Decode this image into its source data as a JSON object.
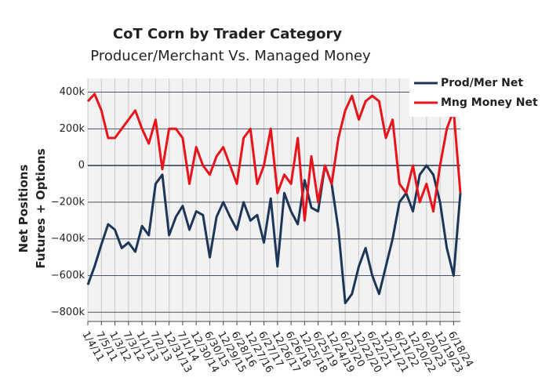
{
  "chart_data": {
    "type": "line",
    "title": "CoT Corn by Trader Category",
    "subtitle": "Producer/Merchant Vs. Managed Money",
    "ylabel": [
      "Net Positions",
      "Futures + Options"
    ],
    "x": [
      "1/4/11",
      null,
      "7/5/11",
      null,
      "1/3/12",
      null,
      "7/3/12",
      null,
      "1/1/13",
      null,
      "7/2/13",
      null,
      "12/31/13",
      null,
      "7/1/14",
      null,
      "12/30/14",
      null,
      "6/30/15",
      null,
      "12/29/15",
      null,
      "6/28/16",
      null,
      "12/27/16",
      null,
      "6/27/17",
      null,
      "12/26/17",
      null,
      "6/26/18",
      null,
      "12/25/18",
      null,
      "6/25/19",
      null,
      "12/24/19",
      null,
      "6/23/20",
      null,
      "12/22/20",
      null,
      "6/22/21",
      null,
      "12/21/21",
      null,
      "6/21/22",
      null,
      "12/20/22",
      null,
      "6/20/23",
      null,
      "12/19/23",
      null,
      "6/18/24",
      null
    ],
    "series": [
      {
        "name": "Prod/Mer Net",
        "color": "#1d3557",
        "values": [
          -650000,
          -550000,
          -430000,
          -320000,
          -350000,
          -450000,
          -420000,
          -470000,
          -330000,
          -380000,
          -100000,
          -50000,
          -380000,
          -280000,
          -220000,
          -350000,
          -250000,
          -270000,
          -500000,
          -280000,
          -200000,
          -280000,
          -350000,
          -200000,
          -300000,
          -270000,
          -420000,
          -180000,
          -550000,
          -150000,
          -250000,
          -320000,
          -80000,
          -230000,
          -250000,
          0,
          -100000,
          -350000,
          -750000,
          -700000,
          -550000,
          -450000,
          -600000,
          -700000,
          -550000,
          -400000,
          -200000,
          -150000,
          -250000,
          -50000,
          0,
          -50000,
          -200000,
          -450000,
          -600000,
          -150000
        ]
      },
      {
        "name": "Mng Money Net",
        "color": "#e8131b",
        "values": [
          350000,
          390000,
          300000,
          150000,
          150000,
          200000,
          250000,
          300000,
          200000,
          120000,
          250000,
          -20000,
          200000,
          200000,
          150000,
          -100000,
          100000,
          0,
          -50000,
          50000,
          100000,
          0,
          -100000,
          150000,
          200000,
          -100000,
          0,
          200000,
          -150000,
          -50000,
          -100000,
          150000,
          -300000,
          50000,
          -200000,
          0,
          -100000,
          150000,
          300000,
          380000,
          250000,
          350000,
          380000,
          350000,
          150000,
          250000,
          -100000,
          -150000,
          0,
          -200000,
          -100000,
          -250000,
          0,
          200000,
          300000,
          -150000
        ]
      }
    ],
    "ylim": [
      -850000,
      475000
    ],
    "yticks": [
      {
        "value": -800000,
        "label": "−800k"
      },
      {
        "value": -600000,
        "label": "−600k"
      },
      {
        "value": -400000,
        "label": "−400k"
      },
      {
        "value": -200000,
        "label": "−200k"
      },
      0,
      {
        "value": 200000,
        "label": "200k"
      },
      {
        "value": 400000,
        "label": "400k"
      }
    ],
    "grid": true,
    "legend": "top-right"
  }
}
